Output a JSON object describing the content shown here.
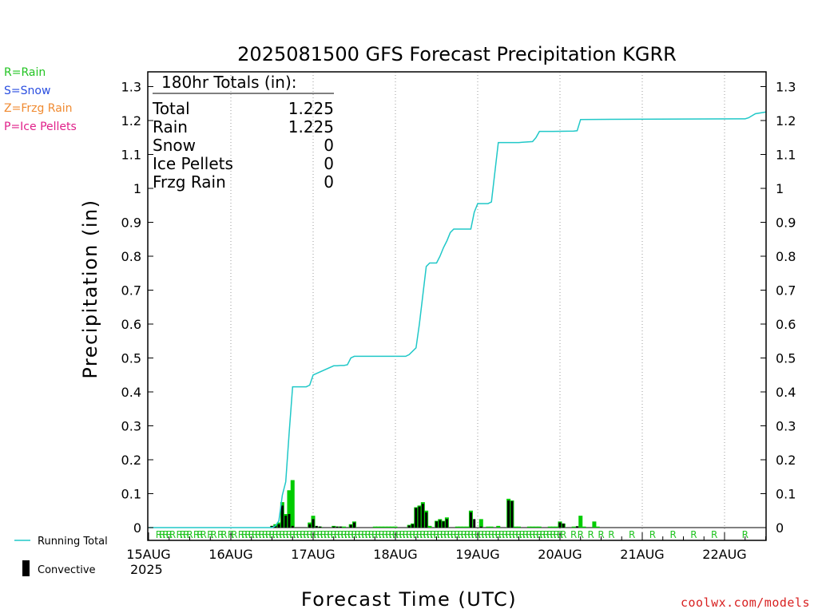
{
  "chart_data": {
    "type": "bar",
    "title": "2025081500 GFS Forecast Precipitation KGRR",
    "xlabel": "Forecast Time (UTC)",
    "ylabel": "Precipitation (in)",
    "ylim": [
      0,
      1.35
    ],
    "yticks": [
      "0",
      "0.1",
      "0.2",
      "0.3",
      "0.4",
      "0.5",
      "0.6",
      "0.7",
      "0.8",
      "0.9",
      "1",
      "1.1",
      "1.2",
      "1.3"
    ],
    "x_unit": "hours from 15AUG 00Z",
    "xlim": [
      0,
      180
    ],
    "day_labels": [
      "15AUG",
      "16AUG",
      "17AUG",
      "18AUG",
      "19AUG",
      "20AUG",
      "21AUG",
      "22AUG"
    ],
    "year_label": "2025",
    "grid": "vertical dotted at day boundaries",
    "type_legend": [
      {
        "label": "R=Rain",
        "color": "#22c422"
      },
      {
        "label": "S=Snow",
        "color": "#2a4ee0"
      },
      {
        "label": "Z=Frzg Rain",
        "color": "#f08a30"
      },
      {
        "label": "P=Ice Pellets",
        "color": "#e0208a"
      }
    ],
    "totals_box": {
      "header": "180hr Totals (in):",
      "rows": [
        {
          "label": "Total",
          "value": "1.225"
        },
        {
          "label": "Rain",
          "value": "1.225"
        },
        {
          "label": "Snow",
          "value": "0"
        },
        {
          "label": "Ice Pellets",
          "value": "0"
        },
        {
          "label": "Frzg Rain",
          "value": "0"
        }
      ]
    },
    "series_legend": [
      {
        "label": "Running Total",
        "color": "#20c8c8"
      },
      {
        "label": "Convective",
        "color": "#000000"
      }
    ],
    "running_total": {
      "name": "Running Total",
      "x": [
        0,
        36,
        37,
        38,
        39,
        40,
        41,
        42,
        45,
        46,
        47,
        48,
        54,
        55,
        56,
        57,
        58,
        59,
        60,
        66,
        67,
        68,
        69,
        70,
        72,
        73,
        74,
        75,
        76,
        78,
        79,
        80,
        81,
        82,
        84,
        85,
        86,
        87,
        88,
        89,
        90,
        91,
        93,
        94,
        95,
        96,
        97,
        99,
        100,
        102,
        105,
        106,
        107,
        108,
        109,
        112,
        113,
        114,
        117,
        118,
        124,
        125,
        126,
        172,
        174,
        175,
        177,
        180
      ],
      "y": [
        0,
        0,
        0.005,
        0.02,
        0.095,
        0.135,
        0.28,
        0.415,
        0.415,
        0.415,
        0.42,
        0.45,
        0.477,
        0.477,
        0.478,
        0.478,
        0.48,
        0.5,
        0.505,
        0.505,
        0.505,
        0.505,
        0.505,
        0.505,
        0.505,
        0.505,
        0.505,
        0.505,
        0.51,
        0.53,
        0.6,
        0.685,
        0.77,
        0.78,
        0.78,
        0.8,
        0.825,
        0.845,
        0.87,
        0.88,
        0.88,
        0.88,
        0.88,
        0.88,
        0.93,
        0.955,
        0.955,
        0.955,
        0.96,
        1.135,
        1.135,
        1.135,
        1.135,
        1.135,
        1.136,
        1.138,
        1.15,
        1.168,
        1.168,
        1.168,
        1.169,
        1.17,
        1.203,
        1.205,
        1.205,
        1.208,
        1.22,
        1.225
      ]
    },
    "rain_bars": {
      "name": "Rain",
      "x": [
        36,
        37,
        38,
        39,
        40,
        41,
        42,
        47,
        48,
        50,
        54,
        55,
        56,
        57,
        59,
        60,
        66,
        67,
        68,
        69,
        70,
        71,
        72,
        76,
        77,
        78,
        79,
        80,
        81,
        82,
        84,
        85,
        86,
        87,
        90,
        91,
        92,
        93,
        94,
        97,
        99,
        100,
        102,
        105,
        106,
        107,
        108,
        111,
        112,
        113,
        114,
        117,
        118,
        119,
        120,
        121,
        124,
        125,
        126,
        127,
        130,
        131
      ],
      "y": [
        0.005,
        0.01,
        0.015,
        0.075,
        0.04,
        0.11,
        0.14,
        0.015,
        0.035,
        0.003,
        0.005,
        0.003,
        0.003,
        0.003,
        0.01,
        0.018,
        0.003,
        0.003,
        0.003,
        0.003,
        0.003,
        0.003,
        0.003,
        0.008,
        0.012,
        0.06,
        0.065,
        0.075,
        0.05,
        0.005,
        0.02,
        0.025,
        0.02,
        0.03,
        0.003,
        0.003,
        0.003,
        0.003,
        0.05,
        0.025,
        0.003,
        0.003,
        0.005,
        0.085,
        0.08,
        0.003,
        0.003,
        0.003,
        0.003,
        0.003,
        0.003,
        0.003,
        0.003,
        0.003,
        0.018,
        0.012,
        0.003,
        0.003,
        0.035,
        0.003,
        0.018,
        0.003
      ]
    },
    "convective_bars": {
      "name": "Convective",
      "x": [
        36,
        37,
        38,
        39,
        40,
        41,
        42,
        47,
        48,
        49,
        50,
        54,
        55,
        56,
        59,
        60,
        76,
        77,
        78,
        79,
        80,
        81,
        84,
        85,
        86,
        87,
        94,
        95,
        97,
        105,
        106,
        120,
        121,
        125
      ],
      "y": [
        0.005,
        0.005,
        0.01,
        0.065,
        0.035,
        0.04,
        0.005,
        0.01,
        0.025,
        0.005,
        0.003,
        0.003,
        0.003,
        0.003,
        0.008,
        0.015,
        0.006,
        0.01,
        0.058,
        0.062,
        0.07,
        0.045,
        0.018,
        0.022,
        0.018,
        0.025,
        0.045,
        0.025,
        0.003,
        0.08,
        0.078,
        0.015,
        0.012,
        0.004
      ]
    },
    "ptype_markers": {
      "symbol": "R",
      "x": [
        3,
        4,
        5,
        6,
        7,
        9,
        10,
        11,
        12,
        14,
        15,
        16,
        18,
        19,
        21,
        22,
        24,
        25,
        27,
        28,
        29,
        30,
        31,
        32,
        33,
        34,
        35,
        36,
        37,
        38,
        39,
        40,
        41,
        42,
        43,
        44,
        45,
        46,
        47,
        48,
        49,
        50,
        51,
        52,
        53,
        54,
        55,
        56,
        57,
        58,
        59,
        60,
        61,
        62,
        63,
        64,
        65,
        66,
        67,
        68,
        69,
        70,
        71,
        72,
        73,
        74,
        75,
        76,
        77,
        78,
        79,
        80,
        81,
        82,
        83,
        84,
        85,
        86,
        87,
        88,
        89,
        90,
        91,
        92,
        93,
        94,
        95,
        96,
        97,
        98,
        99,
        100,
        101,
        102,
        103,
        104,
        105,
        106,
        107,
        108,
        109,
        110,
        111,
        112,
        113,
        114,
        115,
        116,
        117,
        118,
        119,
        120,
        121,
        124,
        126,
        129,
        132,
        135,
        141,
        147,
        153,
        159,
        165,
        174
      ]
    }
  }
}
